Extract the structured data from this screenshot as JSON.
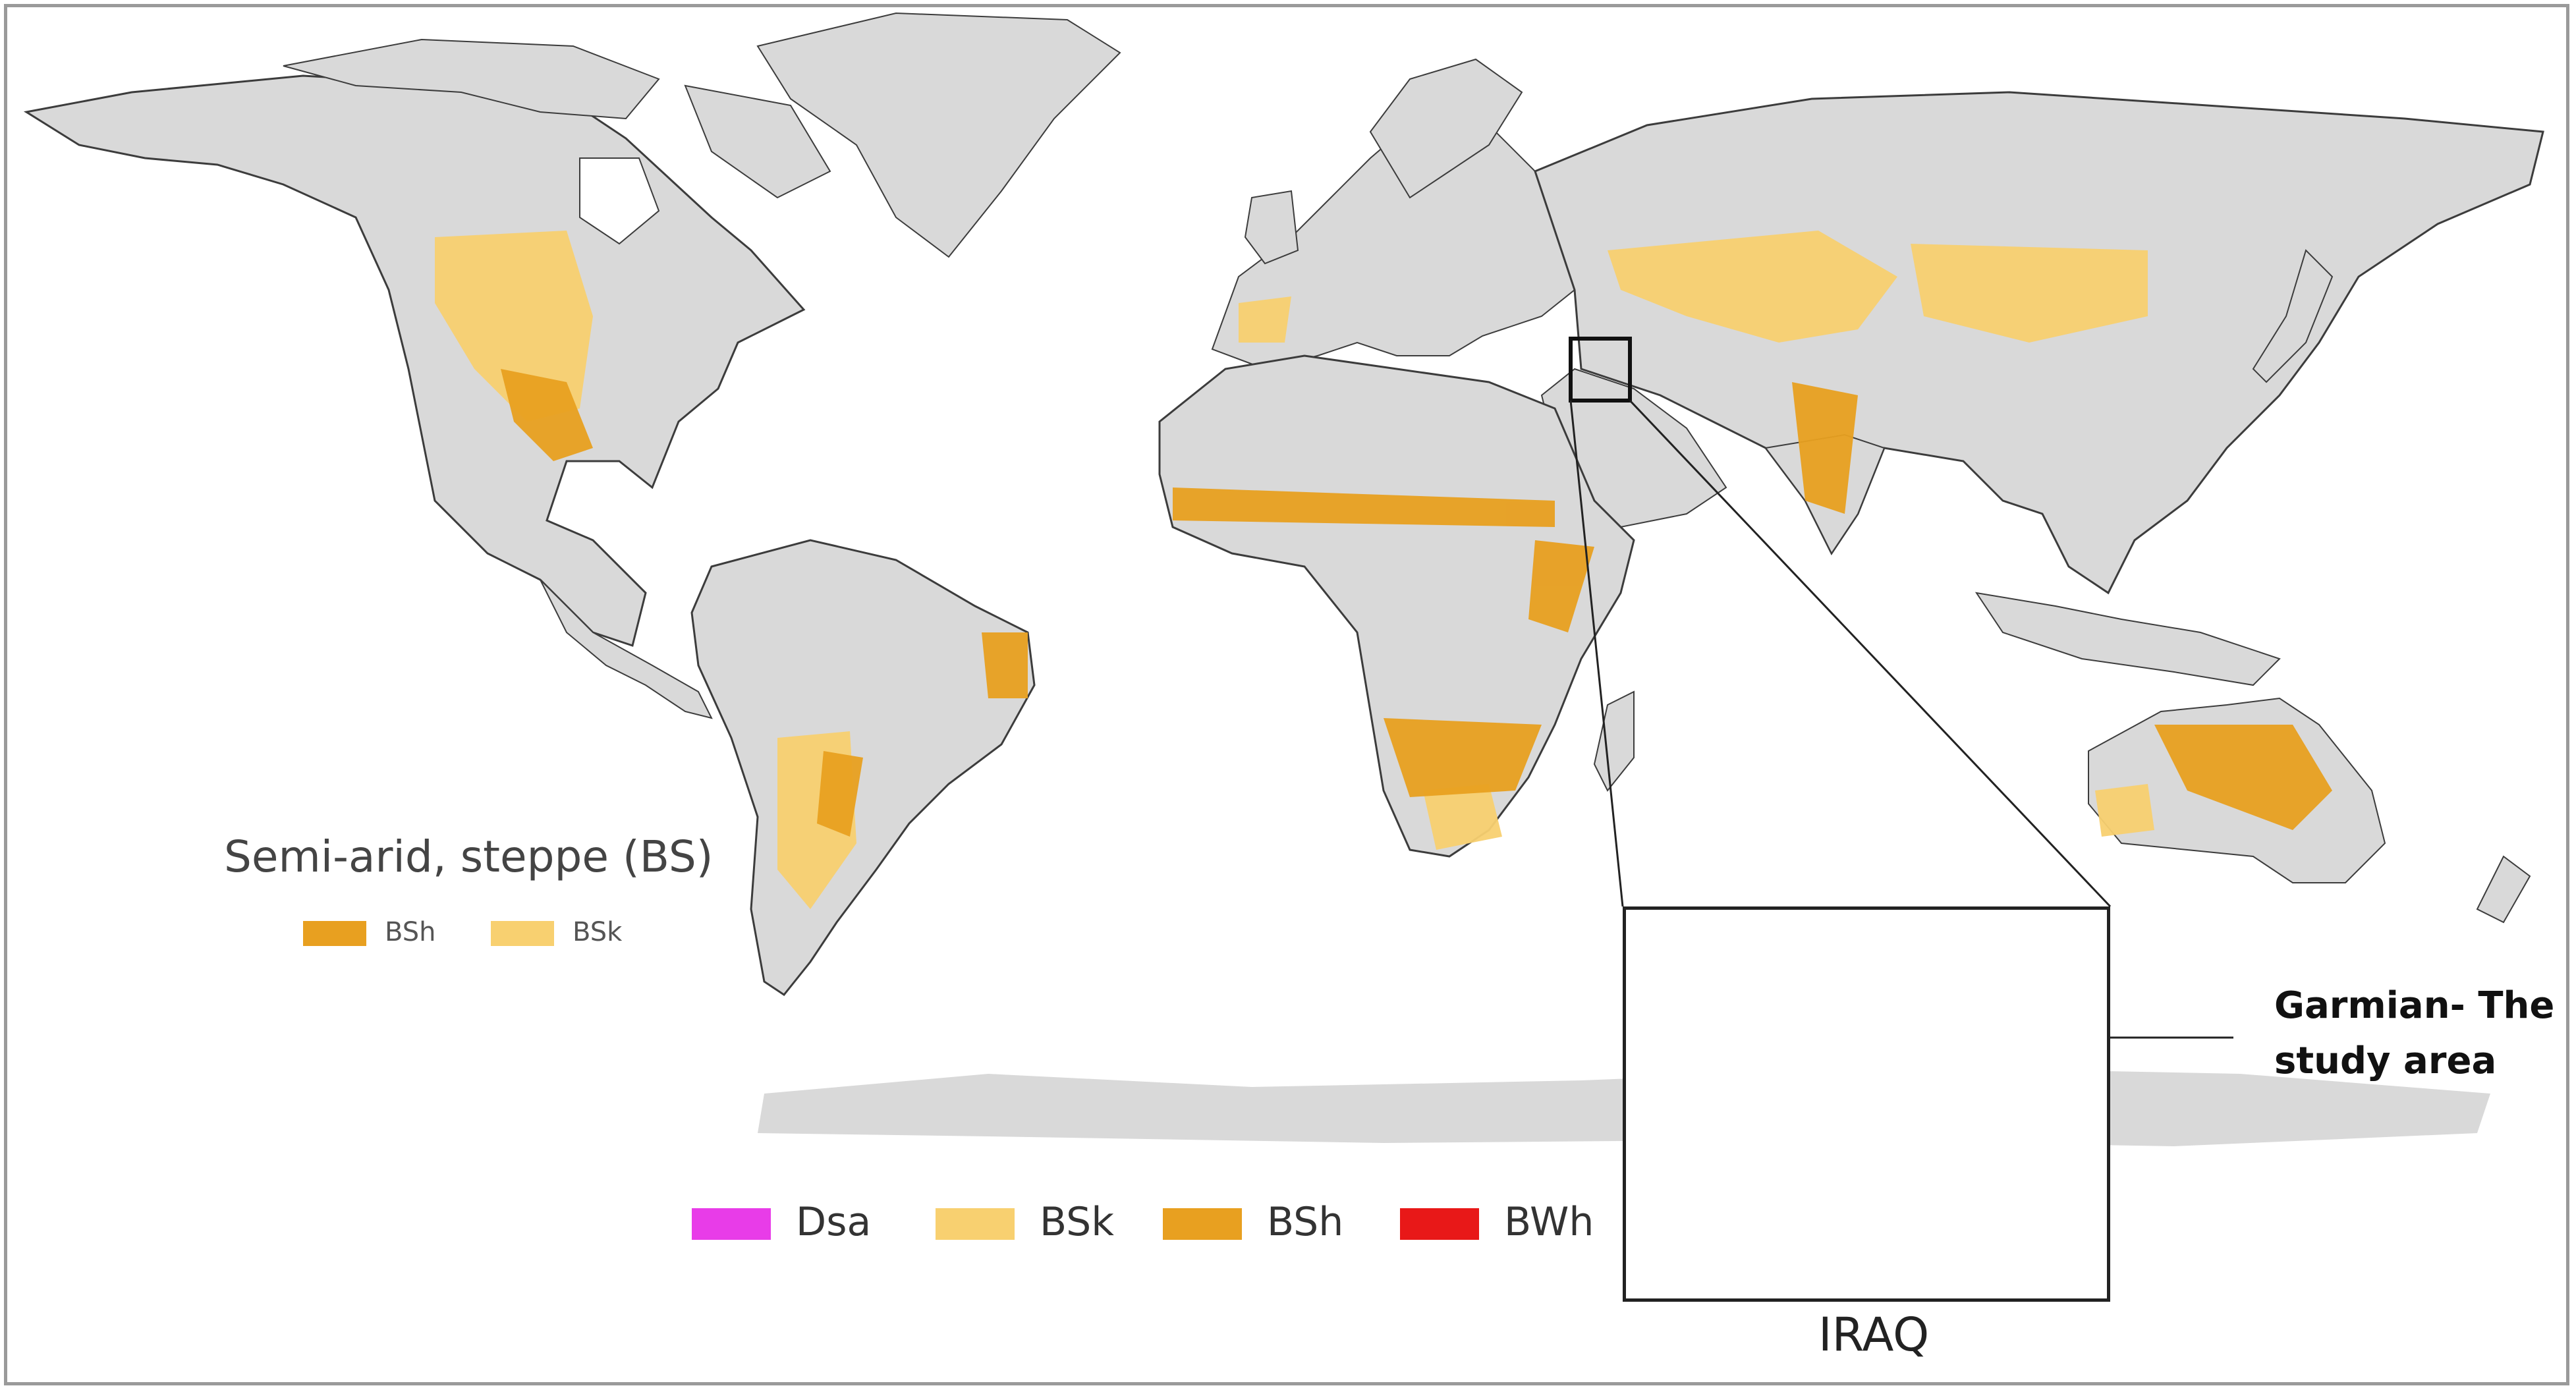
{
  "legend_semiarid": {
    "title": "Semi-arid, steppe (BS)",
    "items": [
      {
        "code": "BSh",
        "color": "#E8A020"
      },
      {
        "code": "BSk",
        "color": "#F8D070"
      }
    ]
  },
  "legend_climate": {
    "items": [
      {
        "code": "Dsa",
        "color": "#E83CE8"
      },
      {
        "code": "BSk",
        "color": "#F8D070"
      },
      {
        "code": "BSh",
        "color": "#E8A020"
      },
      {
        "code": "BWh",
        "color": "#E81818"
      }
    ]
  },
  "inset": {
    "title": "IRAQ",
    "study_area_label": "Garmian- The study area"
  },
  "colors": {
    "land": "#D9D9D9",
    "border": "#3C3C3C",
    "ocean": "#FFFFFF",
    "yellow": "#FFFF10",
    "marker": "#4A5BAE"
  }
}
